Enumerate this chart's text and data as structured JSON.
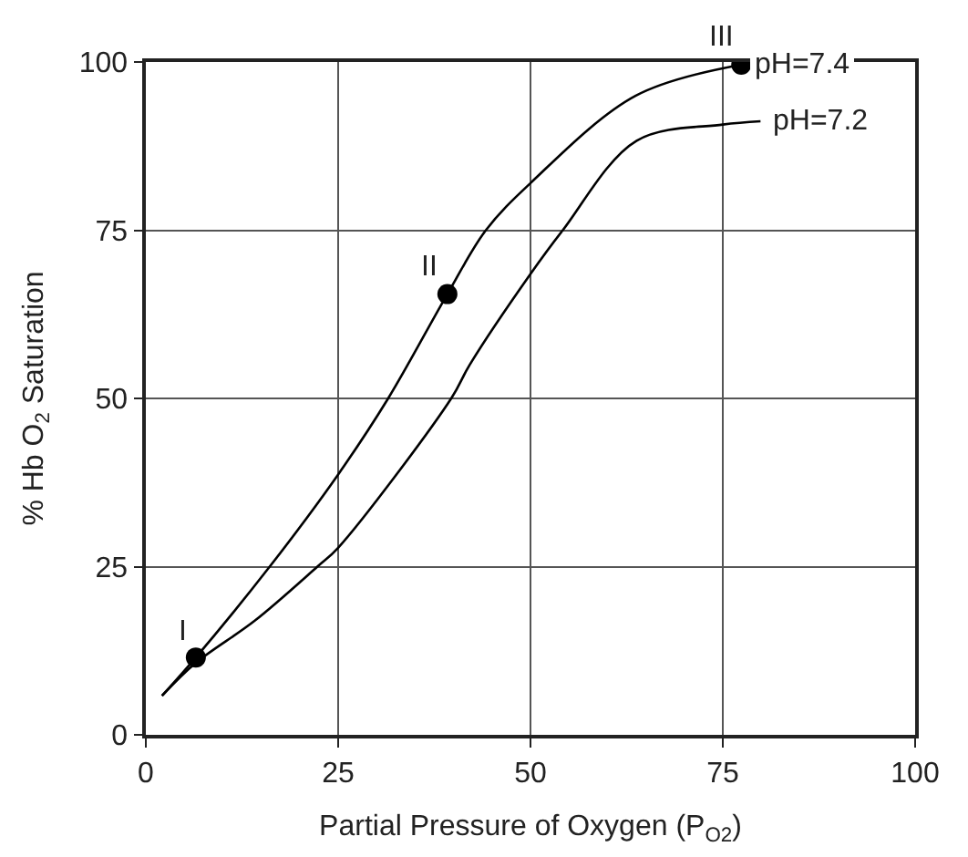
{
  "chart_data": {
    "type": "line",
    "xlabel": "Partial Pressure of Oxygen (P$_{O2}$)",
    "ylabel": "% Hb O$_{2}$ Saturation",
    "xlim": [
      0,
      100
    ],
    "ylim": [
      0,
      100
    ],
    "xticks": [
      0,
      25,
      50,
      75,
      100
    ],
    "yticks": [
      0,
      25,
      50,
      75,
      100
    ],
    "grid": true,
    "legend": false,
    "series": [
      {
        "name": "pH=7.4",
        "color": "#000000",
        "x": [
          2.1,
          6.5,
          16.1,
          25,
          31.5,
          39.2,
          44.2,
          50,
          63.7,
          77.4
        ],
        "values": [
          5.8,
          11.5,
          25,
          38.7,
          50,
          65.5,
          75,
          82,
          95,
          99.6
        ]
      },
      {
        "name": "pH=7.2",
        "color": "#000000",
        "x": [
          2.1,
          6.5,
          14.2,
          22.3,
          25,
          39.7,
          42.1,
          50,
          54.2,
          63.8,
          75,
          79.9
        ],
        "values": [
          5.8,
          10.7,
          17,
          25,
          27.8,
          50,
          55,
          68.5,
          75,
          88.3,
          90.7,
          91.2
        ]
      },
      {
        "color": "#000000",
        "type": "scatter",
        "x": [
          6.5,
          39.2,
          77.4
        ],
        "values": [
          11.5,
          65.5,
          99.6
        ]
      }
    ],
    "annotations": [
      {
        "text": "I",
        "x": 6.5,
        "y": 11.5
      },
      {
        "text": "II",
        "x": 39.2,
        "y": 65.5
      },
      {
        "text": "III",
        "x": 77.4,
        "y": 99.6
      }
    ]
  }
}
